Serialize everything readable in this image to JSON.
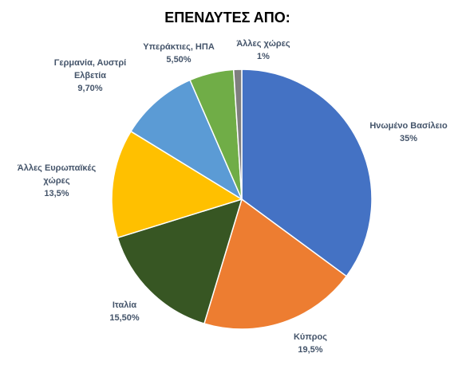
{
  "chart_data": {
    "type": "pie",
    "title": "ΕΠΕΝΔΥΤΕΣ ΑΠΟ:",
    "slices": [
      {
        "label_lines": [
          "Ηνωμένο Βασίλειο"
        ],
        "value": 35,
        "value_label": "35%",
        "color": "#4472C4"
      },
      {
        "label_lines": [
          "Κύπρος"
        ],
        "value": 19.5,
        "value_label": "19,5%",
        "color": "#ED7D31"
      },
      {
        "label_lines": [
          "Ιταλία"
        ],
        "value": 15.5,
        "value_label": "15,50%",
        "color": "#375623"
      },
      {
        "label_lines": [
          "Άλλες Ευρωπαϊκές",
          "χώρες"
        ],
        "value": 13.5,
        "value_label": "13,5%",
        "color": "#FFC000"
      },
      {
        "label_lines": [
          "Γερμανία, Αυστρί",
          "Ελβετία"
        ],
        "value": 9.7,
        "value_label": "9,70%",
        "color": "#5B9BD5"
      },
      {
        "label_lines": [
          "Υπεράκτιες, ΗΠΑ"
        ],
        "value": 5.5,
        "value_label": "5,50%",
        "color": "#70AD47"
      },
      {
        "label_lines": [
          "Άλλες χώρες"
        ],
        "value": 1,
        "value_label": "1%",
        "color": "#7F7F7F"
      }
    ],
    "start_angle": "12 o'clock",
    "direction": "clockwise",
    "legend": "none",
    "label_color": "#44546A"
  }
}
